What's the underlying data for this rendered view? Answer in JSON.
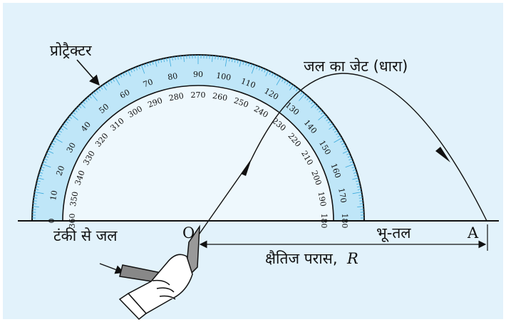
{
  "labels": {
    "protractor": "प्रोट्रैक्टर",
    "jet": "जल का जेट (धारा)",
    "tank": "टंकी से जल",
    "origin": "O",
    "ground": "भू-तल",
    "end": "A",
    "range": "क्षैतिज परास,",
    "range_symbol": "R"
  },
  "scale": {
    "outer": [
      0,
      10,
      20,
      30,
      40,
      50,
      60,
      70,
      80,
      90,
      100,
      110,
      120,
      130,
      140,
      150,
      160,
      170,
      180
    ],
    "inner": [
      360,
      350,
      340,
      330,
      320,
      310,
      300,
      290,
      280,
      270,
      260,
      250,
      240,
      230,
      220,
      210,
      200,
      190,
      180
    ]
  }
}
